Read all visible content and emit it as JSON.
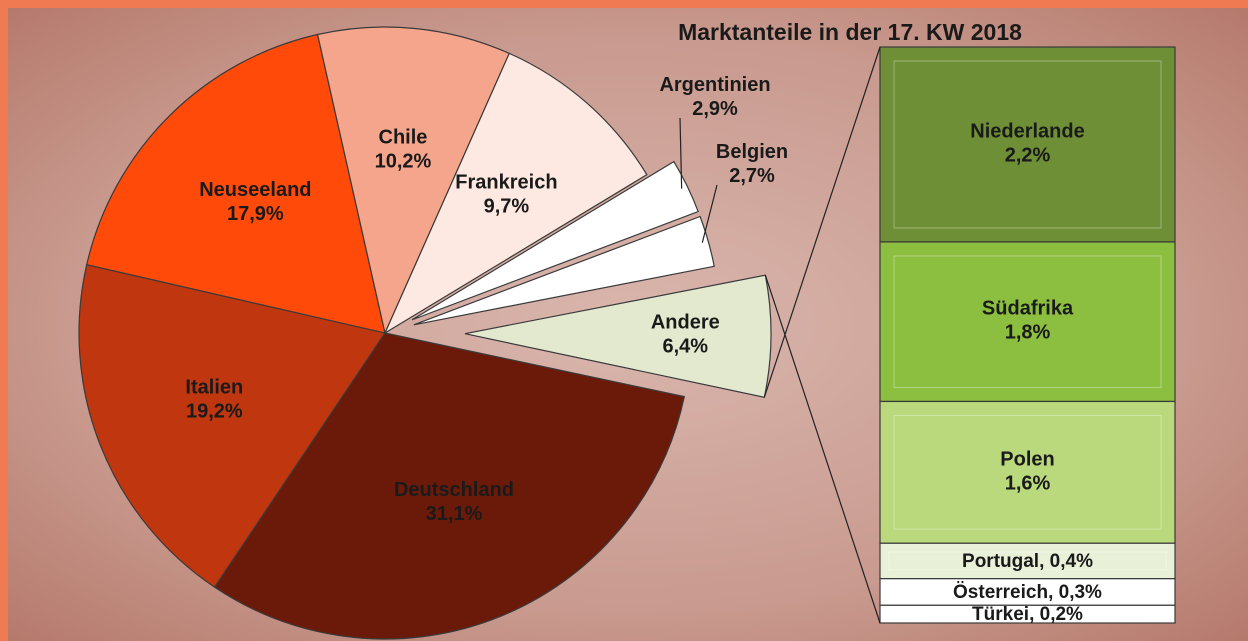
{
  "chart_data": {
    "type": "pie",
    "title": "Marktanteile in der 17. KW 2018",
    "categories": [
      "Deutschland",
      "Italien",
      "Neuseeland",
      "Chile",
      "Frankreich",
      "Argentinien",
      "Belgien",
      "Andere"
    ],
    "values": [
      31.1,
      19.2,
      17.9,
      10.2,
      9.7,
      2.9,
      2.7,
      6.4
    ],
    "value_labels": [
      "31,1%",
      "19,2%",
      "17,9%",
      "10,2%",
      "9,7%",
      "2,9%",
      "2,7%",
      "6,4%"
    ],
    "colors": [
      "#6b1a0a",
      "#c0360f",
      "#ff4a0a",
      "#f5a58c",
      "#fde9e1",
      "#ffffff",
      "#ffffff",
      "#e2e9cf"
    ],
    "secondary_bar": {
      "categories": [
        "Niederlande",
        "Südafrika",
        "Polen",
        "Portugal",
        "Österreich",
        "Türkei"
      ],
      "values": [
        2.2,
        1.8,
        1.6,
        0.4,
        0.3,
        0.2
      ],
      "value_labels": [
        "2,2%",
        "1,8%",
        "1,6%",
        "0,4%",
        "0,3%",
        "0,2%"
      ],
      "label_separator": ", ",
      "colors": [
        "#6e8f35",
        "#8cbf3f",
        "#b9d97c",
        "#e8f1d8",
        "#ffffff",
        "#ffffff"
      ]
    }
  }
}
